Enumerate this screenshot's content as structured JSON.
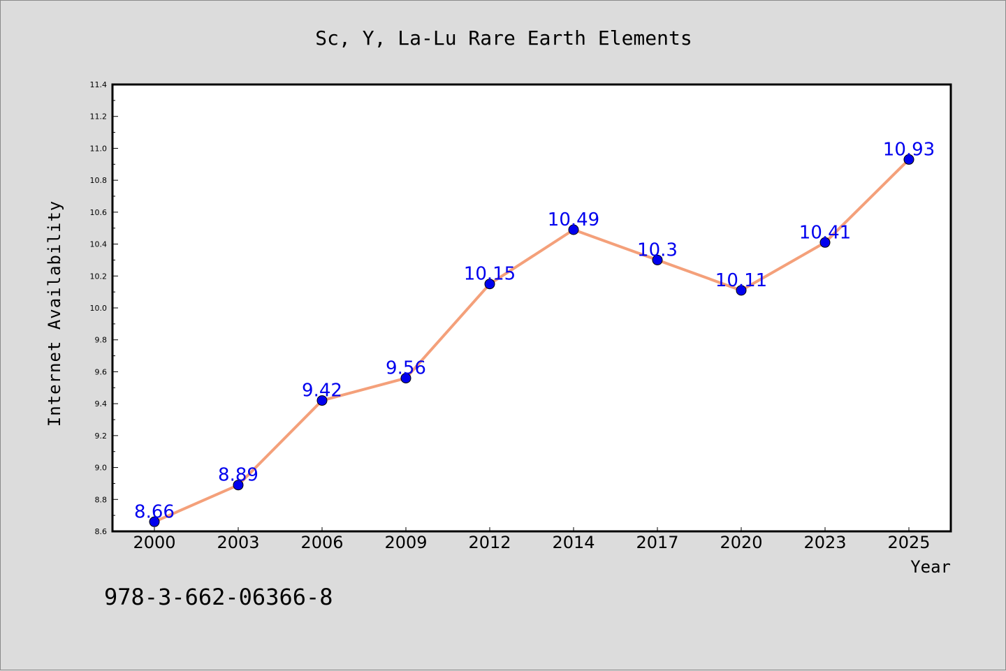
{
  "chart_data": {
    "type": "line",
    "title": "Sc, Y, La-Lu Rare Earth Elements",
    "xlabel": "Year",
    "ylabel": "Internet Availability",
    "categories": [
      "2000",
      "2003",
      "2006",
      "2009",
      "2012",
      "2014",
      "2017",
      "2020",
      "2023",
      "2025"
    ],
    "series": [
      {
        "values": [
          8.66,
          8.89,
          9.42,
          9.56,
          10.15,
          10.49,
          10.3,
          10.11,
          10.41,
          10.93
        ],
        "labels": [
          "8.66",
          "8.89",
          "9.42",
          "9.56",
          "10.15",
          "10.49",
          "10.3",
          "10.11",
          "10.41",
          "10.93"
        ],
        "line_color": "#f4a07a",
        "marker_color": "#0000ee"
      }
    ],
    "ylim": [
      8.6,
      11.4
    ],
    "yticks": [
      "8.6",
      "8.8",
      "9.0",
      "9.2",
      "9.4",
      "9.6",
      "9.8",
      "10.0",
      "10.2",
      "10.4",
      "10.6",
      "10.8",
      "11.0",
      "11.2",
      "11.4"
    ],
    "grid": false,
    "legend": "none",
    "data_label_color": "#0000ee"
  },
  "annotation": "978-3-662-06366-8",
  "colors": {
    "background": "#dcdcdc",
    "plot_background": "#ffffff"
  }
}
